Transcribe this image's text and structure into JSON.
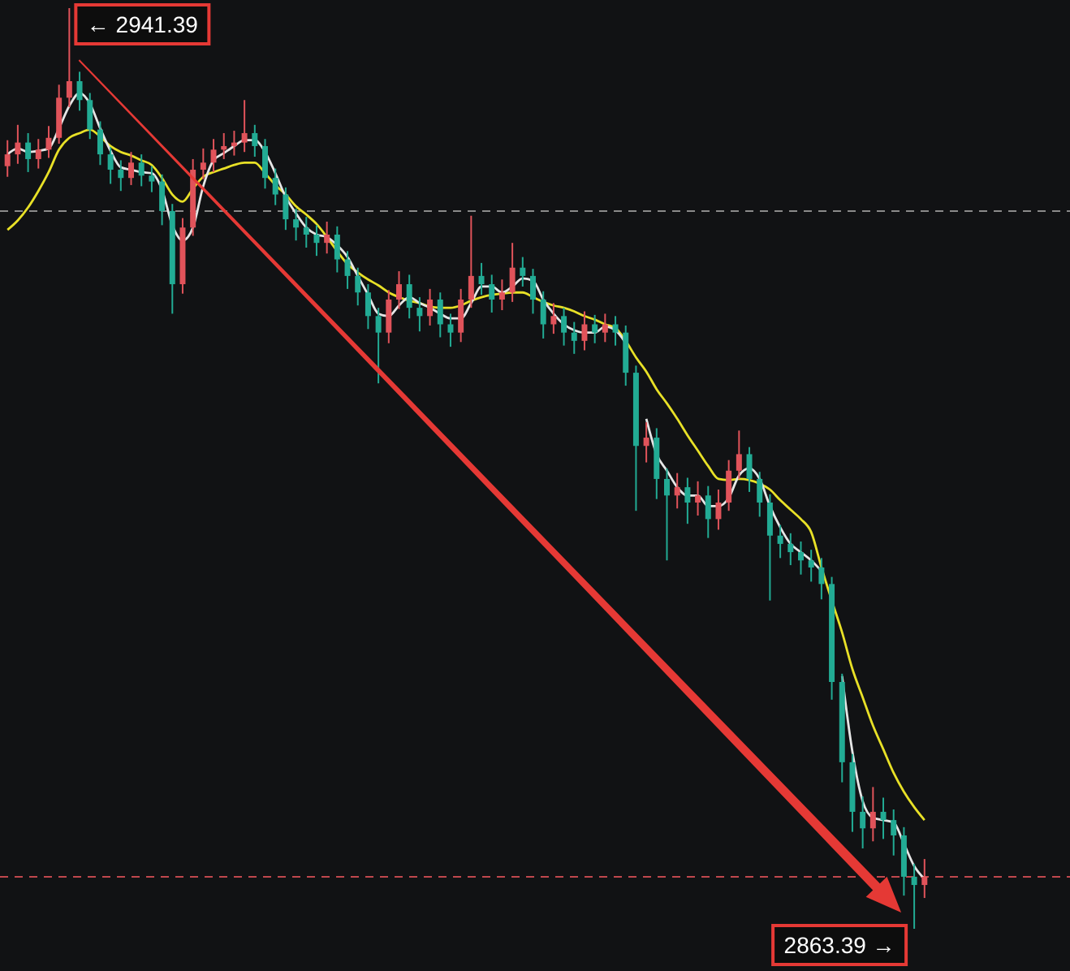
{
  "chart_data": {
    "type": "candlestick",
    "categories": [
      null,
      null,
      null,
      null,
      null,
      null,
      null,
      null,
      null,
      null,
      null,
      null,
      null,
      null,
      null,
      null,
      null,
      null,
      null,
      null,
      null,
      null,
      null,
      null,
      null,
      null,
      null,
      null,
      null,
      null,
      null,
      null,
      null,
      null,
      null,
      null,
      null,
      null,
      null,
      null,
      null,
      null,
      null,
      null,
      null,
      null,
      null,
      null,
      null,
      null,
      null,
      null,
      null,
      null,
      null,
      null,
      null,
      null,
      null,
      null,
      null,
      null,
      null,
      null,
      null,
      null,
      null,
      null,
      null,
      null,
      null,
      null,
      null,
      null,
      null,
      null,
      null,
      null,
      null,
      null,
      null,
      null,
      null,
      null,
      null,
      null,
      null,
      null,
      null,
      null
    ],
    "series": [
      {
        "type": "line",
        "color": "#e8e027",
        "values": [
          2922.6,
          2923.4,
          2924.5,
          2925.9,
          2927.5,
          2929.4,
          2930.4,
          2930.8,
          2931.1,
          2930.5,
          2929.7,
          2929.2,
          2928.9,
          2928.5,
          2928.1,
          2927.0,
          2925.6,
          2925.0,
          2926.1,
          2927.1,
          2927.5,
          2927.8,
          2928.1,
          2928.3,
          2928.3,
          2927.4,
          2926.4,
          2925.6,
          2924.6,
          2923.9,
          2923.1,
          2922.0,
          2920.8,
          2919.7,
          2919.0,
          2918.4,
          2917.9,
          2917.3,
          2916.9,
          2916.6,
          2916.4,
          2916.1,
          2916.0,
          2916.0,
          2916.2,
          2916.6,
          2916.9,
          2917.1,
          2917.2,
          2917.3,
          2917.3,
          2916.9,
          2916.5,
          2916.2,
          2916.0,
          2915.7,
          2915.3,
          2915.0,
          2914.6,
          2914.3,
          2913.2,
          2911.8,
          2910.6,
          2909.1,
          2907.9,
          2906.6,
          2905.2,
          2903.9,
          2902.6,
          2901.5,
          2901.4,
          2901.5,
          2901.4,
          2901.1,
          2900.6,
          2899.7,
          2898.9,
          2898.1,
          2897.0,
          2894.0,
          2891.2,
          2888.5,
          2885.4,
          2883.0,
          2880.6,
          2878.6,
          2876.6,
          2875.0,
          2873.7,
          2872.6
        ]
      },
      {
        "type": "line",
        "color": "#e6e6e6",
        "values": [
          2929.0,
          2929.5,
          2929.2,
          2929.3,
          2929.5,
          2931.2,
          2933.1,
          2934.2,
          2933.3,
          2931.2,
          2929.3,
          2927.9,
          2927.7,
          2927.5,
          2927.4,
          2926.0,
          2923.0,
          2921.7,
          2922.8,
          2926.3,
          2928.5,
          2929.1,
          2929.7,
          2930.2,
          2930.2,
          2929.2,
          2927.4,
          2925.4,
          2924.0,
          2922.8,
          2922.2,
          2922.0,
          2921.3,
          2920.3,
          2918.7,
          2917.1,
          2915.5,
          2915.3,
          2916.2,
          2916.9,
          2916.4,
          2916.0,
          2915.5,
          2915.1,
          2915.1,
          2916.4,
          2917.8,
          2917.8,
          2917.3,
          2917.8,
          2918.5,
          2918.3,
          2916.7,
          2915.5,
          2914.6,
          2914.1,
          2913.9,
          2913.9,
          2914.4,
          2914.1,
          2913.0,
          null,
          2906.6,
          2903.6,
          2902.2,
          2900.8,
          2900.1,
          2900.1,
          2899.2,
          2899.2,
          2899.9,
          2901.8,
          2902.4,
          2901.5,
          2899.2,
          2897.4,
          2896.0,
          2895.3,
          2894.6,
          2893.7,
          null,
          2884.8,
          2878.4,
          2874.2,
          2872.8,
          2872.6,
          2872.4,
          2870.6,
          2868.7,
          2867.6
        ]
      },
      {
        "type": "candlestick",
        "ohlc": [
          [
            2928.0,
            2930.2,
            2927.1,
            2929.0
          ],
          [
            2929.0,
            2931.5,
            2928.2,
            2930.0
          ],
          [
            2930.0,
            2930.8,
            2927.5,
            2928.6
          ],
          [
            2928.6,
            2930.3,
            2927.8,
            2929.4
          ],
          [
            2929.4,
            2931.4,
            2928.7,
            2930.4
          ],
          [
            2930.4,
            2934.9,
            2929.9,
            2933.8
          ],
          [
            2933.8,
            2941.39,
            2933.0,
            2935.2
          ],
          [
            2935.2,
            2936.0,
            2932.7,
            2933.6
          ],
          [
            2933.6,
            2934.2,
            2930.3,
            2931.1
          ],
          [
            2931.1,
            2931.8,
            2928.1,
            2929.0
          ],
          [
            2929.0,
            2929.6,
            2926.5,
            2927.7
          ],
          [
            2927.7,
            2928.5,
            2925.9,
            2927.0
          ],
          [
            2927.0,
            2929.2,
            2926.4,
            2928.3
          ],
          [
            2928.3,
            2929.0,
            2926.3,
            2927.2
          ],
          [
            2927.2,
            2928.0,
            2925.8,
            2926.7
          ],
          [
            2926.7,
            2927.3,
            2923.0,
            2924.2
          ],
          [
            2924.2,
            2924.8,
            2915.5,
            2918.0
          ],
          [
            2918.0,
            2923.6,
            2917.2,
            2922.8
          ],
          [
            2922.8,
            2928.6,
            2922.1,
            2927.7
          ],
          [
            2927.7,
            2929.5,
            2926.9,
            2928.3
          ],
          [
            2928.3,
            2930.3,
            2927.5,
            2929.4
          ],
          [
            2929.4,
            2930.8,
            2928.6,
            2929.7
          ],
          [
            2929.7,
            2931.0,
            2928.9,
            2930.0
          ],
          [
            2930.0,
            2933.6,
            2929.2,
            2930.8
          ],
          [
            2930.8,
            2931.5,
            2928.8,
            2929.7
          ],
          [
            2929.7,
            2930.3,
            2926.1,
            2927.0
          ],
          [
            2927.0,
            2927.8,
            2924.7,
            2925.6
          ],
          [
            2925.6,
            2926.2,
            2922.6,
            2923.5
          ],
          [
            2923.5,
            2924.4,
            2921.7,
            2922.8
          ],
          [
            2922.8,
            2923.7,
            2921.1,
            2922.2
          ],
          [
            2922.2,
            2923.0,
            2920.4,
            2921.5
          ],
          [
            2921.5,
            2923.3,
            2920.6,
            2922.2
          ],
          [
            2922.2,
            2922.9,
            2919.0,
            2920.1
          ],
          [
            2920.1,
            2920.8,
            2917.6,
            2918.7
          ],
          [
            2918.7,
            2919.4,
            2916.2,
            2917.3
          ],
          [
            2917.3,
            2918.0,
            2914.2,
            2915.3
          ],
          [
            2915.3,
            2916.0,
            2909.6,
            2913.9
          ],
          [
            2913.9,
            2917.5,
            2913.0,
            2916.7
          ],
          [
            2916.7,
            2919.1,
            2915.9,
            2918.0
          ],
          [
            2918.0,
            2918.8,
            2915.1,
            2916.0
          ],
          [
            2916.0,
            2916.9,
            2914.0,
            2915.3
          ],
          [
            2915.3,
            2917.6,
            2914.5,
            2916.7
          ],
          [
            2916.7,
            2917.3,
            2913.5,
            2914.6
          ],
          [
            2914.6,
            2915.5,
            2912.7,
            2913.9
          ],
          [
            2913.9,
            2917.6,
            2913.1,
            2916.7
          ],
          [
            2916.7,
            2923.8,
            2916.0,
            2918.7
          ],
          [
            2918.7,
            2919.8,
            2917.1,
            2918.0
          ],
          [
            2918.0,
            2918.8,
            2915.6,
            2916.7
          ],
          [
            2916.7,
            2918.4,
            2915.8,
            2917.3
          ],
          [
            2917.3,
            2921.5,
            2916.5,
            2919.4
          ],
          [
            2919.4,
            2920.3,
            2917.8,
            2918.7
          ],
          [
            2918.7,
            2919.3,
            2915.5,
            2916.7
          ],
          [
            2916.7,
            2917.4,
            2913.4,
            2914.6
          ],
          [
            2914.6,
            2916.4,
            2913.8,
            2915.3
          ],
          [
            2915.3,
            2916.0,
            2912.8,
            2913.9
          ],
          [
            2913.9,
            2914.8,
            2912.1,
            2913.2
          ],
          [
            2913.2,
            2915.7,
            2912.4,
            2914.6
          ],
          [
            2914.6,
            2915.4,
            2913.0,
            2913.9
          ],
          [
            2913.9,
            2915.5,
            2913.1,
            2914.6
          ],
          [
            2914.6,
            2915.3,
            2912.8,
            2913.9
          ],
          [
            2913.9,
            2914.5,
            2909.4,
            2910.5
          ],
          [
            2910.5,
            2911.1,
            2898.8,
            2904.3
          ],
          [
            2904.3,
            2906.3,
            2902.9,
            2905.0
          ],
          [
            2905.0,
            2905.8,
            2899.8,
            2901.5
          ],
          [
            2901.5,
            2902.4,
            2894.6,
            2900.1
          ],
          [
            2900.1,
            2902.0,
            2899.0,
            2900.8
          ],
          [
            2900.8,
            2901.6,
            2897.7,
            2899.5
          ],
          [
            2899.5,
            2901.3,
            2898.4,
            2900.1
          ],
          [
            2900.1,
            2900.9,
            2896.5,
            2898.1
          ],
          [
            2898.1,
            2900.6,
            2897.2,
            2899.5
          ],
          [
            2899.5,
            2903.1,
            2898.8,
            2902.2
          ],
          [
            2902.2,
            2905.6,
            2901.5,
            2903.6
          ],
          [
            2903.6,
            2904.2,
            2900.4,
            2901.5
          ],
          [
            2901.5,
            2902.1,
            2898.3,
            2899.5
          ],
          [
            2899.5,
            2900.2,
            2891.2,
            2896.7
          ],
          [
            2896.7,
            2897.6,
            2894.8,
            2896.0
          ],
          [
            2896.0,
            2896.9,
            2894.2,
            2895.3
          ],
          [
            2895.3,
            2896.2,
            2893.4,
            2894.6
          ],
          [
            2894.6,
            2895.5,
            2892.8,
            2894.0
          ],
          [
            2894.0,
            2894.8,
            2891.3,
            2892.6
          ],
          [
            2892.6,
            2893.2,
            2882.8,
            2884.3
          ],
          [
            2884.3,
            2885.0,
            2875.8,
            2877.5
          ],
          [
            2877.5,
            2878.2,
            2871.6,
            2873.3
          ],
          [
            2873.3,
            2874.6,
            2870.2,
            2871.9
          ],
          [
            2871.9,
            2875.4,
            2870.8,
            2873.3
          ],
          [
            2873.3,
            2874.5,
            2871.0,
            2872.6
          ],
          [
            2872.6,
            2873.5,
            2869.6,
            2871.3
          ],
          [
            2871.3,
            2872.0,
            2866.2,
            2867.8
          ],
          [
            2867.8,
            2868.9,
            2863.39,
            2867.1
          ],
          [
            2867.1,
            2869.3,
            2866.0,
            2867.8
          ]
        ],
        "colors": [
          "#e0535a",
          "#e0535a",
          "#22ab94",
          "#e0535a",
          "#e0535a",
          "#e0535a",
          "#e0535a",
          "#22ab94",
          "#22ab94",
          "#22ab94",
          "#22ab94",
          "#22ab94",
          "#e0535a",
          "#22ab94",
          "#22ab94",
          "#22ab94",
          "#22ab94",
          "#e0535a",
          "#e0535a",
          "#e0535a",
          "#e0535a",
          "#e0535a",
          "#e0535a",
          "#e0535a",
          "#22ab94",
          "#22ab94",
          "#22ab94",
          "#22ab94",
          "#22ab94",
          "#22ab94",
          "#22ab94",
          "#e0535a",
          "#22ab94",
          "#22ab94",
          "#22ab94",
          "#22ab94",
          "#22ab94",
          "#e0535a",
          "#e0535a",
          "#22ab94",
          "#22ab94",
          "#e0535a",
          "#22ab94",
          "#22ab94",
          "#e0535a",
          "#e0535a",
          "#22ab94",
          "#22ab94",
          "#e0535a",
          "#e0535a",
          "#22ab94",
          "#22ab94",
          "#22ab94",
          "#e0535a",
          "#22ab94",
          "#22ab94",
          "#e0535a",
          "#22ab94",
          "#e0535a",
          "#22ab94",
          "#22ab94",
          "#22ab94",
          "#e0535a",
          "#22ab94",
          "#22ab94",
          "#e0535a",
          "#22ab94",
          "#e0535a",
          "#22ab94",
          "#e0535a",
          "#e0535a",
          "#e0535a",
          "#22ab94",
          "#22ab94",
          "#22ab94",
          "#22ab94",
          "#22ab94",
          "#22ab94",
          "#22ab94",
          "#22ab94",
          "#22ab94",
          "#22ab94",
          "#22ab94",
          "#22ab94",
          "#e0535a",
          "#22ab94",
          "#22ab94",
          "#22ab94",
          "#22ab94",
          "#e0535a"
        ]
      }
    ],
    "ref_lines": [
      {
        "axis": "y",
        "value": 2924.2,
        "color": "#8a8a8a",
        "line_style": "dashed"
      },
      {
        "axis": "y",
        "value": 2867.8,
        "color": "#c0474d",
        "line_style": "dashed"
      }
    ],
    "annotations": [
      "← 2941.39",
      "2863.39 →"
    ]
  }
}
